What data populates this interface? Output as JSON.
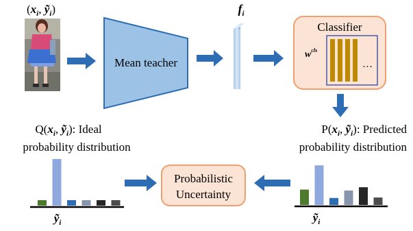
{
  "input": {
    "label": "(x_i, ỹ_i)",
    "image_desc_icon": "person-photo"
  },
  "mean_teacher": {
    "label": "Mean teacher"
  },
  "feature": {
    "label": "f_i"
  },
  "classifier": {
    "title": "Classifier",
    "weight_label": "w",
    "weight_sup": "cls",
    "ellipsis": "…"
  },
  "predicted": {
    "line1": "P(x_i, ỹ_i): Predicted",
    "line2": "probability distribution",
    "axis_label": "ỹ_i",
    "bar_levels": [
      0.33,
      0.85,
      0.15,
      0.31,
      0.38,
      0.16
    ],
    "bar_colors": [
      "#4e7a2e",
      "#8fa9df",
      "#2e6db3",
      "#8896ad",
      "#262626",
      "#4d4d4d"
    ]
  },
  "ideal": {
    "line1": "Q(x_i, ỹ_i): Ideal",
    "line2": "probability distribution",
    "axis_label": "ỹ_i",
    "bar_levels": [
      0.1,
      0.85,
      0.1,
      0.1,
      0.1,
      0.1
    ],
    "bar_colors": [
      "#4e7a2e",
      "#8fa9df",
      "#2e6db3",
      "#8896ad",
      "#262626",
      "#4d4d4d"
    ]
  },
  "uncertainty": {
    "line1": "Probabilistic",
    "line2": "Uncertainty"
  },
  "colors": {
    "arrow": "#2e6db3",
    "teacher_fill": "#9cc3e6",
    "teacher_stroke": "#2e6db3",
    "feature_fill": "#bcd5ee",
    "box_fill": "#fbe4d5",
    "box_stroke": "#f0a070",
    "weight_bar": "#c08a00",
    "weight_border": "#4a5aa8"
  }
}
